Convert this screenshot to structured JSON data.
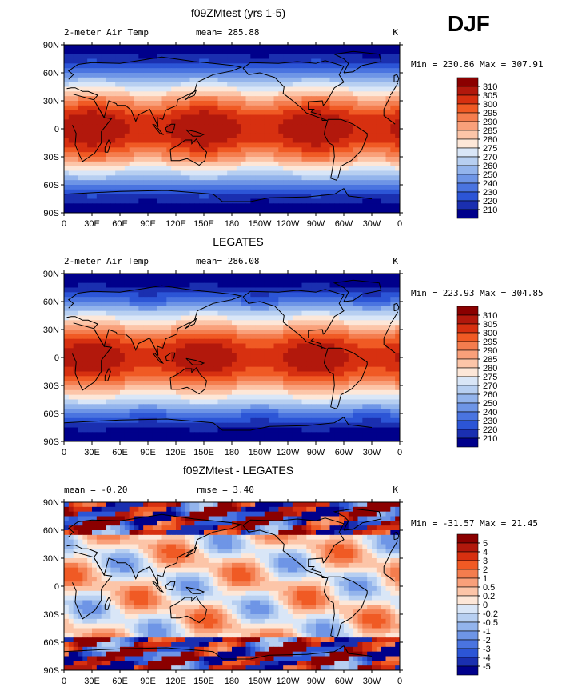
{
  "season": "DJF",
  "panels": [
    {
      "title": "f09ZMtest (yrs 1-5)",
      "left_label": "2-meter Air Temp",
      "stat_label": "mean= 285.88",
      "extra_label": "",
      "units": "K",
      "minmax": "Min = 230.86 Max = 307.91",
      "levels": [
        "310",
        "305",
        "300",
        "295",
        "290",
        "285",
        "280",
        "275",
        "270",
        "260",
        "250",
        "240",
        "230",
        "220",
        "210"
      ],
      "colors": [
        "#8b0000",
        "#b2180c",
        "#d73010",
        "#f05a24",
        "#f47d4e",
        "#f9a07a",
        "#fcc5a8",
        "#fde7d8",
        "#d9e6f7",
        "#b7cff1",
        "#93b4ec",
        "#6e95e6",
        "#4a74e0",
        "#2c55d6",
        "#1a2fb0",
        "#00008b"
      ]
    },
    {
      "title": "LEGATES",
      "left_label": "2-meter Air Temp",
      "stat_label": "mean= 286.08",
      "extra_label": "",
      "units": "K",
      "minmax": "Min = 223.93 Max = 304.85",
      "levels": [
        "310",
        "305",
        "300",
        "295",
        "290",
        "285",
        "280",
        "275",
        "270",
        "260",
        "250",
        "240",
        "230",
        "220",
        "210"
      ],
      "colors": [
        "#8b0000",
        "#b2180c",
        "#d73010",
        "#f05a24",
        "#f47d4e",
        "#f9a07a",
        "#fcc5a8",
        "#fde7d8",
        "#d9e6f7",
        "#b7cff1",
        "#93b4ec",
        "#6e95e6",
        "#4a74e0",
        "#2c55d6",
        "#1a2fb0",
        "#00008b"
      ]
    },
    {
      "title": "f09ZMtest - LEGATES",
      "left_label": "mean =   -0.20",
      "stat_label": "rmse =    3.40",
      "extra_label": "",
      "units": "K",
      "minmax": "Min = -31.57 Max =  21.45",
      "levels": [
        "5",
        "4",
        "3",
        "2",
        "1",
        "0.5",
        "0.2",
        "0",
        "-0.2",
        "-0.5",
        "-1",
        "-2",
        "-3",
        "-4",
        "-5"
      ],
      "colors": [
        "#8b0000",
        "#b2180c",
        "#d73010",
        "#f05a24",
        "#f47d4e",
        "#f9a07a",
        "#fcc5a8",
        "#fde7d8",
        "#d9e6f7",
        "#b7cff1",
        "#93b4ec",
        "#6e95e6",
        "#4a74e0",
        "#2c55d6",
        "#1a2fb0",
        "#00008b"
      ]
    }
  ],
  "lat_ticks": [
    "90N",
    "60N",
    "30N",
    "0",
    "30S",
    "60S",
    "90S"
  ],
  "lon_ticks": [
    "0",
    "30E",
    "60E",
    "90E",
    "120E",
    "150E",
    "180",
    "150W",
    "120W",
    "90W",
    "60W",
    "30W",
    "0"
  ]
}
